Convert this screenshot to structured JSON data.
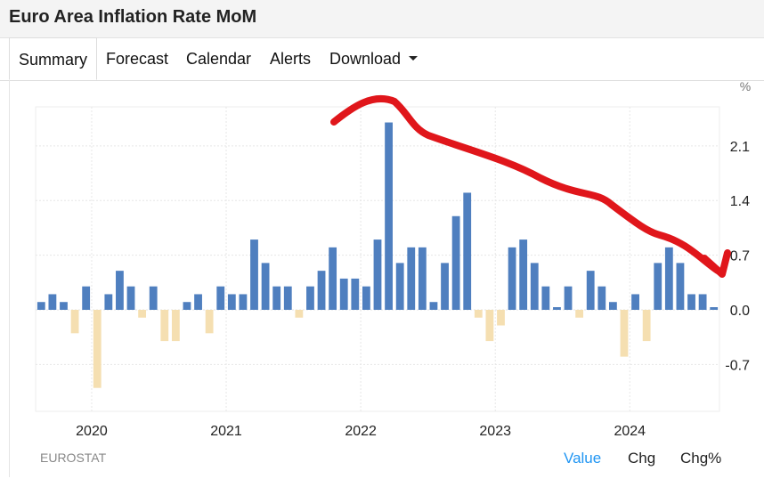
{
  "page": {
    "title": "Euro Area Inflation Rate MoM",
    "tabs": [
      {
        "label": "Summary",
        "active": true
      },
      {
        "label": "Forecast"
      },
      {
        "label": "Calendar"
      },
      {
        "label": "Alerts"
      },
      {
        "label": "Download"
      }
    ],
    "source": "EUROSTAT",
    "footer_tabs": [
      {
        "label": "Value",
        "selected": true
      },
      {
        "label": "Chg"
      },
      {
        "label": "Chg%"
      }
    ]
  },
  "chart_data": {
    "type": "bar",
    "title": "Euro Area Inflation Rate MoM",
    "unit_label": "%",
    "xlabel": "",
    "ylabel": "",
    "x_tick_labels": [
      "2020",
      "2021",
      "2022",
      "2023",
      "2024"
    ],
    "y_ticks": [
      -0.7,
      0.0,
      0.7,
      1.4,
      2.1
    ],
    "y_tick_labels": [
      "-0.7",
      "0.0",
      "0.7",
      "1.4",
      "2.1"
    ],
    "ylim": [
      -1.3,
      2.6
    ],
    "grid": true,
    "start_month": "2019-08",
    "positive_color": "#4f7fbf",
    "negative_color": "#f5dfb1",
    "annotation": {
      "type": "hand-drawn red arrow",
      "color": "#e0161b"
    },
    "values": [
      0.1,
      0.2,
      0.1,
      -0.3,
      0.3,
      -1.0,
      0.2,
      0.5,
      0.3,
      -0.1,
      0.3,
      -0.4,
      -0.4,
      0.1,
      0.2,
      -0.3,
      0.3,
      0.2,
      0.2,
      0.9,
      0.6,
      0.3,
      0.3,
      -0.1,
      0.3,
      0.5,
      0.8,
      0.4,
      0.4,
      0.3,
      0.9,
      2.4,
      0.6,
      0.8,
      0.8,
      0.1,
      0.6,
      1.2,
      1.5,
      -0.1,
      -0.4,
      -0.2,
      0.8,
      0.9,
      0.6,
      0.3,
      0.0,
      0.3,
      -0.1,
      0.5,
      0.3,
      0.1,
      -0.6,
      0.2,
      -0.4,
      0.6,
      0.8,
      0.6,
      0.2,
      0.2,
      0.0
    ]
  }
}
